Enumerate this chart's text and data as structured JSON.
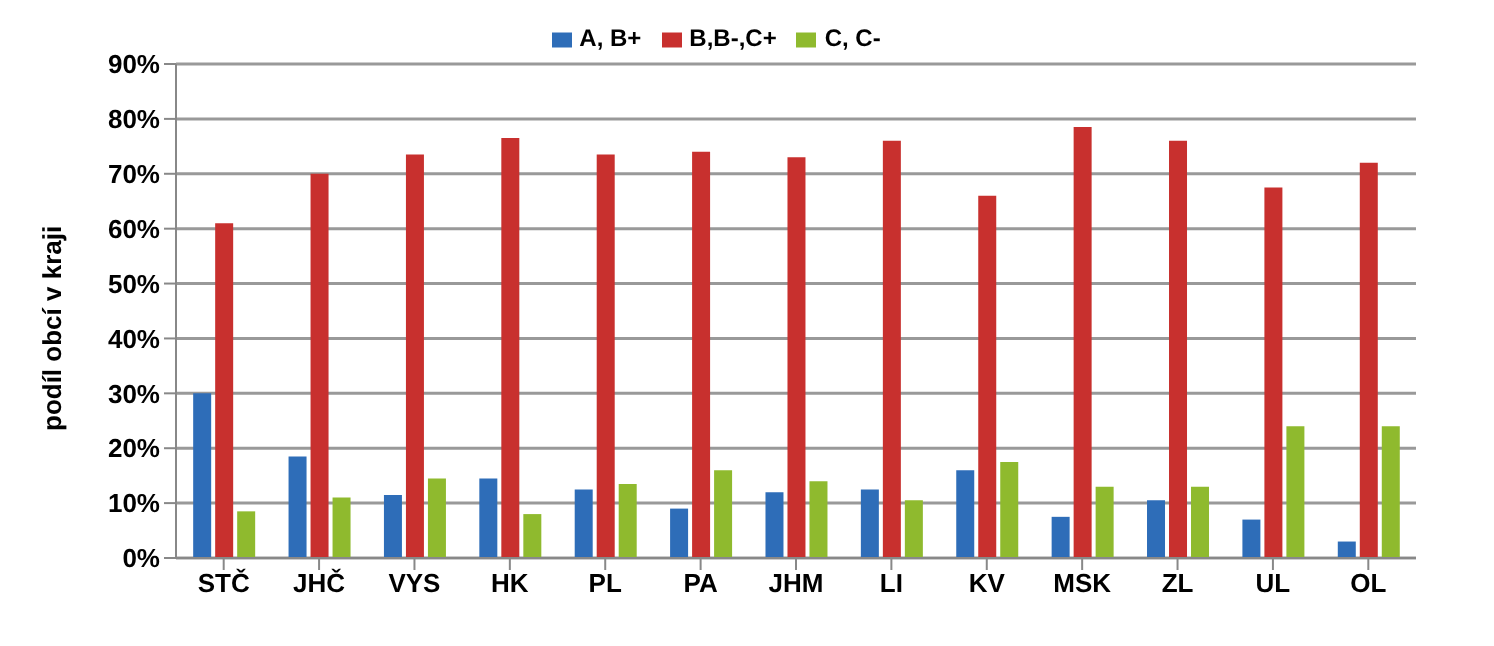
{
  "chart_data": {
    "type": "bar",
    "ylabel": "podíl obcí v kraji",
    "categories": [
      "STČ",
      "JHČ",
      "VYS",
      "HK",
      "PL",
      "PA",
      "JHM",
      "LI",
      "KV",
      "MSK",
      "ZL",
      "UL",
      "OL"
    ],
    "series": [
      {
        "name": "A, B+",
        "color": "#2e6db8",
        "values": [
          30,
          18.5,
          11.5,
          14.5,
          12.5,
          9,
          12,
          12.5,
          16,
          7.5,
          10.5,
          7,
          3
        ]
      },
      {
        "name": "B,B-,C+",
        "color": "#c8302e",
        "values": [
          61,
          70,
          73.5,
          76.5,
          73.5,
          74,
          73,
          76,
          66,
          78.5,
          76,
          67.5,
          72
        ]
      },
      {
        "name": "C, C-",
        "color": "#8fba2e",
        "values": [
          8.5,
          11,
          14.5,
          8,
          13.5,
          16,
          14,
          10.5,
          17.5,
          13,
          13,
          24,
          24
        ]
      }
    ],
    "ylim": [
      0,
      90
    ],
    "yticks": [
      {
        "value": 0,
        "label": "0%"
      },
      {
        "value": 10,
        "label": "10%"
      },
      {
        "value": 20,
        "label": "20%"
      },
      {
        "value": 30,
        "label": "30%"
      },
      {
        "value": 40,
        "label": "40%"
      },
      {
        "value": 50,
        "label": "50%"
      },
      {
        "value": 60,
        "label": "60%"
      },
      {
        "value": 70,
        "label": "70%"
      },
      {
        "value": 80,
        "label": "80%"
      },
      {
        "value": 90,
        "label": "90%"
      }
    ],
    "grid": "y",
    "legend": "top"
  }
}
